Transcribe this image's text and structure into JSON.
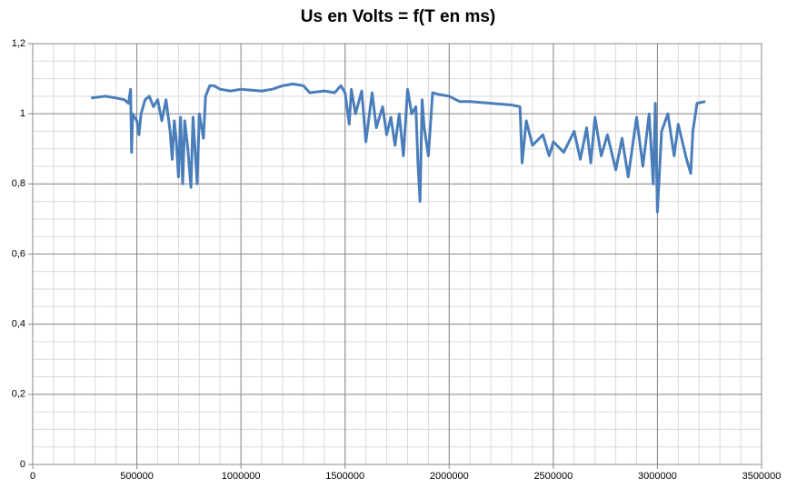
{
  "chart_data": {
    "type": "line",
    "title": "Us en Volts = f(T en ms)",
    "grid": true,
    "minor_grid": {
      "x": 100000,
      "y": 0.05
    },
    "xlim": [
      0,
      3500000
    ],
    "xticks": [
      0,
      500000,
      1000000,
      1500000,
      2000000,
      2500000,
      3000000,
      3500000
    ],
    "ylim": [
      0,
      1.2
    ],
    "yticks": [
      0,
      {
        "value": 0.2,
        "label": "0,2"
      },
      {
        "value": 0.4,
        "label": "0,4"
      },
      {
        "value": 0.6,
        "label": "0,6"
      },
      {
        "value": 0.8,
        "label": "0,8"
      },
      1,
      {
        "value": 1.2,
        "label": "1,2"
      }
    ],
    "series": [
      {
        "color": "#4a7ebb",
        "x": [
          280000,
          350000,
          400000,
          440000,
          460000,
          470000,
          475000,
          480000,
          500000,
          510000,
          520000,
          540000,
          560000,
          580000,
          600000,
          620000,
          640000,
          660000,
          670000,
          680000,
          690000,
          700000,
          710000,
          720000,
          730000,
          745000,
          760000,
          770000,
          790000,
          800000,
          820000,
          830000,
          850000,
          870000,
          900000,
          950000,
          1000000,
          1100000,
          1150000,
          1200000,
          1250000,
          1300000,
          1330000,
          1400000,
          1450000,
          1480000,
          1500000,
          1520000,
          1530000,
          1550000,
          1580000,
          1600000,
          1630000,
          1650000,
          1680000,
          1700000,
          1720000,
          1740000,
          1760000,
          1780000,
          1800000,
          1820000,
          1840000,
          1850000,
          1860000,
          1870000,
          1880000,
          1900000,
          1920000,
          1950000,
          2000000,
          2050000,
          2100000,
          2200000,
          2300000,
          2340000,
          2350000,
          2370000,
          2400000,
          2450000,
          2480000,
          2500000,
          2550000,
          2600000,
          2630000,
          2660000,
          2680000,
          2700000,
          2730000,
          2760000,
          2800000,
          2830000,
          2860000,
          2900000,
          2930000,
          2960000,
          2980000,
          2990000,
          3000000,
          3020000,
          3050000,
          3080000,
          3100000,
          3140000,
          3160000,
          3170000,
          3190000,
          3230000
        ],
        "values": [
          1.045,
          1.05,
          1.045,
          1.04,
          1.03,
          1.07,
          0.89,
          1.0,
          0.98,
          0.94,
          1.0,
          1.04,
          1.05,
          1.02,
          1.04,
          0.98,
          1.04,
          0.95,
          0.87,
          0.98,
          0.92,
          0.82,
          0.99,
          0.8,
          0.98,
          0.9,
          0.79,
          0.99,
          0.8,
          1.0,
          0.93,
          1.05,
          1.08,
          1.08,
          1.07,
          1.065,
          1.07,
          1.065,
          1.07,
          1.08,
          1.085,
          1.08,
          1.06,
          1.065,
          1.06,
          1.08,
          1.06,
          0.97,
          1.07,
          1.0,
          1.065,
          0.92,
          1.06,
          0.96,
          1.02,
          0.94,
          0.99,
          0.91,
          1.0,
          0.88,
          1.07,
          1.0,
          1.02,
          0.86,
          0.75,
          1.04,
          0.96,
          0.88,
          1.06,
          1.055,
          1.05,
          1.035,
          1.035,
          1.03,
          1.025,
          1.02,
          0.86,
          0.98,
          0.91,
          0.94,
          0.88,
          0.92,
          0.89,
          0.95,
          0.87,
          0.96,
          0.86,
          0.99,
          0.88,
          0.94,
          0.84,
          0.93,
          0.82,
          0.99,
          0.85,
          1.0,
          0.8,
          1.03,
          0.72,
          0.95,
          1.0,
          0.88,
          0.97,
          0.87,
          0.83,
          0.95,
          1.03,
          1.035
        ]
      }
    ]
  }
}
